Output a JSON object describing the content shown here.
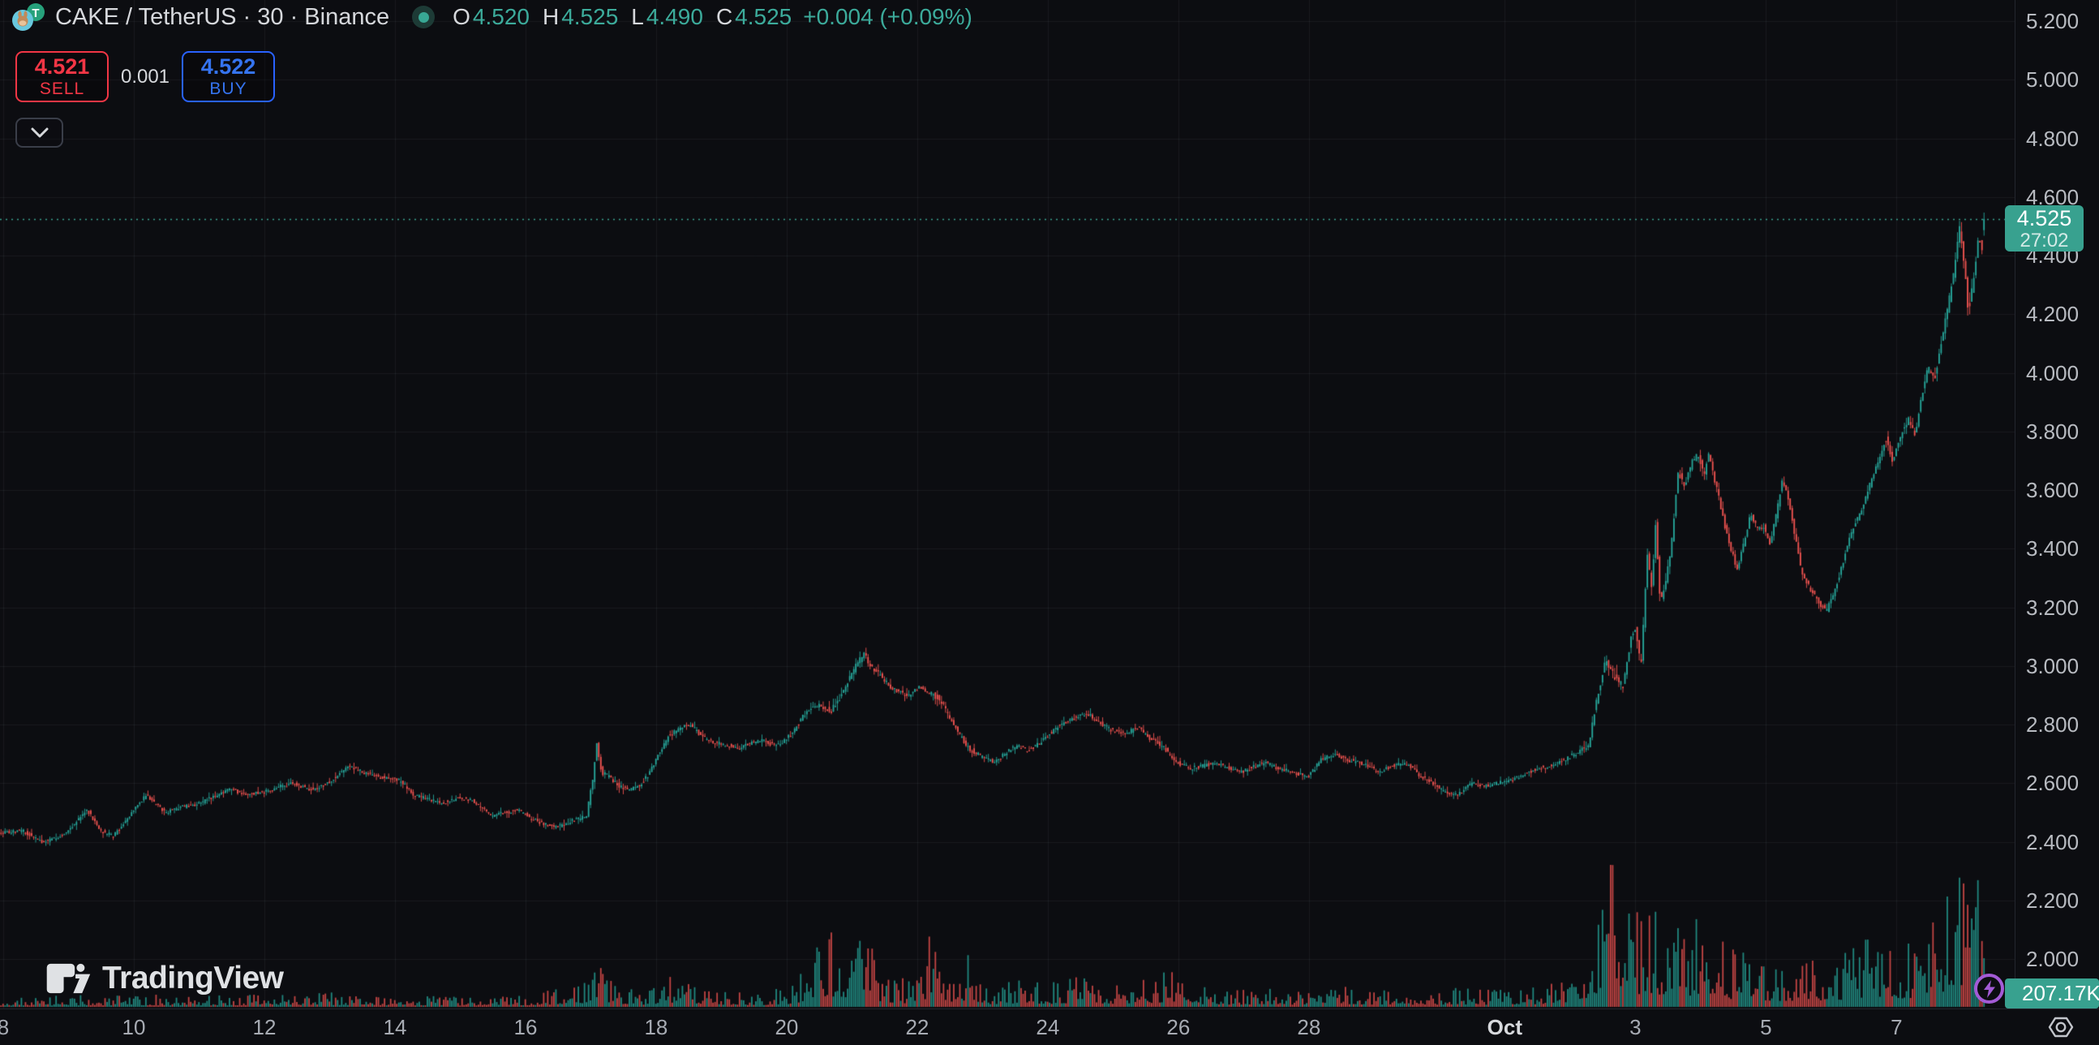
{
  "header": {
    "symbol_title": "CAKE / TetherUS · 30 · Binance",
    "market_status": "open",
    "ohlc": {
      "o_label": "O",
      "o": "4.520",
      "h_label": "H",
      "h": "4.525",
      "l_label": "L",
      "l": "4.490",
      "c_label": "C",
      "c": "4.525",
      "change": "+0.004 (+0.09%)"
    }
  },
  "trade_panel": {
    "sell_price": "4.521",
    "sell_label": "SELL",
    "spread": "0.001",
    "buy_price": "4.522",
    "buy_label": "BUY"
  },
  "price_scale": {
    "ticks": [
      {
        "value": 5.2,
        "label": "5.200"
      },
      {
        "value": 5.0,
        "label": "5.000"
      },
      {
        "value": 4.8,
        "label": "4.800"
      },
      {
        "value": 4.6,
        "label": "4.600"
      },
      {
        "value": 4.4,
        "label": "4.400"
      },
      {
        "value": 4.2,
        "label": "4.200"
      },
      {
        "value": 4.0,
        "label": "4.000"
      },
      {
        "value": 3.8,
        "label": "3.800"
      },
      {
        "value": 3.6,
        "label": "3.600"
      },
      {
        "value": 3.4,
        "label": "3.400"
      },
      {
        "value": 3.2,
        "label": "3.200"
      },
      {
        "value": 3.0,
        "label": "3.000"
      },
      {
        "value": 2.8,
        "label": "2.800"
      },
      {
        "value": 2.6,
        "label": "2.600"
      },
      {
        "value": 2.4,
        "label": "2.400"
      },
      {
        "value": 2.2,
        "label": "2.200"
      },
      {
        "value": 2.0,
        "label": "2.000"
      }
    ],
    "last_price": "4.525",
    "countdown": "27:02"
  },
  "time_scale": {
    "ticks": [
      {
        "label": "8",
        "day": 8
      },
      {
        "label": "10",
        "day": 10
      },
      {
        "label": "12",
        "day": 12
      },
      {
        "label": "14",
        "day": 14
      },
      {
        "label": "16",
        "day": 16
      },
      {
        "label": "18",
        "day": 18
      },
      {
        "label": "20",
        "day": 20
      },
      {
        "label": "22",
        "day": 22
      },
      {
        "label": "24",
        "day": 24
      },
      {
        "label": "26",
        "day": 26
      },
      {
        "label": "28",
        "day": 28
      },
      {
        "label": "Oct",
        "day": 31,
        "major": true
      },
      {
        "label": "3",
        "day": 33
      },
      {
        "label": "5",
        "day": 35
      },
      {
        "label": "7",
        "day": 37
      }
    ]
  },
  "volume_label": "207.17K",
  "watermark": "TradingView",
  "colors": {
    "up": "#26a69a",
    "down": "#ef5350",
    "up_text": "#3cab9b",
    "sell_red": "#f23645",
    "buy_blue": "#2962ff",
    "badge_teal": "#38a18f",
    "boost_purple": "#a35bd6",
    "background": "#0c0d11"
  },
  "chart_data": {
    "type": "candlestick",
    "pair": "CAKE / TetherUS",
    "exchange": "Binance",
    "interval_minutes": 30,
    "ohlc_current": {
      "open": 4.52,
      "high": 4.525,
      "low": 4.49,
      "close": 4.525,
      "change": 0.004,
      "change_pct": 0.09
    },
    "last_price_line": 4.525,
    "y_axis": {
      "price_at_top": 5.272,
      "price_at_bottom": 1.832,
      "tick_step": 0.2,
      "grid": true
    },
    "x_axis": {
      "day_at_left": 7.95,
      "day_at_right": 38.81,
      "last_bar_day": 38.36,
      "month_boundary_day": 31,
      "grid": true
    },
    "price_path": [
      [
        7.95,
        2.43
      ],
      [
        8.3,
        2.44
      ],
      [
        8.6,
        2.4
      ],
      [
        8.9,
        2.42
      ],
      [
        9.1,
        2.46
      ],
      [
        9.3,
        2.51
      ],
      [
        9.5,
        2.44
      ],
      [
        9.7,
        2.42
      ],
      [
        9.9,
        2.47
      ],
      [
        10.05,
        2.52
      ],
      [
        10.2,
        2.56
      ],
      [
        10.35,
        2.53
      ],
      [
        10.5,
        2.5
      ],
      [
        10.75,
        2.52
      ],
      [
        11.0,
        2.53
      ],
      [
        11.3,
        2.56
      ],
      [
        11.5,
        2.58
      ],
      [
        11.75,
        2.56
      ],
      [
        12.0,
        2.57
      ],
      [
        12.25,
        2.59
      ],
      [
        12.45,
        2.6
      ],
      [
        12.7,
        2.58
      ],
      [
        12.9,
        2.59
      ],
      [
        13.1,
        2.62
      ],
      [
        13.3,
        2.66
      ],
      [
        13.5,
        2.64
      ],
      [
        13.8,
        2.62
      ],
      [
        14.1,
        2.61
      ],
      [
        14.3,
        2.56
      ],
      [
        14.5,
        2.55
      ],
      [
        14.7,
        2.53
      ],
      [
        15.0,
        2.55
      ],
      [
        15.2,
        2.54
      ],
      [
        15.5,
        2.49
      ],
      [
        15.7,
        2.5
      ],
      [
        15.9,
        2.51
      ],
      [
        16.1,
        2.48
      ],
      [
        16.3,
        2.46
      ],
      [
        16.5,
        2.45
      ],
      [
        16.7,
        2.47
      ],
      [
        16.95,
        2.49
      ],
      [
        17.05,
        2.62
      ],
      [
        17.1,
        2.74
      ],
      [
        17.18,
        2.64
      ],
      [
        17.3,
        2.62
      ],
      [
        17.45,
        2.59
      ],
      [
        17.6,
        2.58
      ],
      [
        17.75,
        2.59
      ],
      [
        17.9,
        2.63
      ],
      [
        18.05,
        2.7
      ],
      [
        18.2,
        2.76
      ],
      [
        18.4,
        2.79
      ],
      [
        18.55,
        2.8
      ],
      [
        18.7,
        2.76
      ],
      [
        18.9,
        2.74
      ],
      [
        19.1,
        2.73
      ],
      [
        19.3,
        2.72
      ],
      [
        19.5,
        2.74
      ],
      [
        19.65,
        2.75
      ],
      [
        19.8,
        2.73
      ],
      [
        19.95,
        2.74
      ],
      [
        20.1,
        2.77
      ],
      [
        20.3,
        2.84
      ],
      [
        20.5,
        2.87
      ],
      [
        20.7,
        2.85
      ],
      [
        20.85,
        2.9
      ],
      [
        21.0,
        2.97
      ],
      [
        21.1,
        3.01
      ],
      [
        21.2,
        3.04
      ],
      [
        21.3,
        3.0
      ],
      [
        21.45,
        2.97
      ],
      [
        21.6,
        2.93
      ],
      [
        21.75,
        2.91
      ],
      [
        21.9,
        2.9
      ],
      [
        22.05,
        2.93
      ],
      [
        22.2,
        2.91
      ],
      [
        22.35,
        2.89
      ],
      [
        22.5,
        2.83
      ],
      [
        22.65,
        2.77
      ],
      [
        22.8,
        2.72
      ],
      [
        23.0,
        2.69
      ],
      [
        23.2,
        2.67
      ],
      [
        23.4,
        2.71
      ],
      [
        23.55,
        2.73
      ],
      [
        23.7,
        2.71
      ],
      [
        23.85,
        2.73
      ],
      [
        24.0,
        2.76
      ],
      [
        24.2,
        2.8
      ],
      [
        24.4,
        2.82
      ],
      [
        24.6,
        2.84
      ],
      [
        24.8,
        2.81
      ],
      [
        25.0,
        2.78
      ],
      [
        25.2,
        2.77
      ],
      [
        25.4,
        2.79
      ],
      [
        25.6,
        2.75
      ],
      [
        25.8,
        2.72
      ],
      [
        26.0,
        2.67
      ],
      [
        26.2,
        2.65
      ],
      [
        26.4,
        2.66
      ],
      [
        26.6,
        2.67
      ],
      [
        26.8,
        2.65
      ],
      [
        27.0,
        2.64
      ],
      [
        27.2,
        2.66
      ],
      [
        27.35,
        2.67
      ],
      [
        27.55,
        2.65
      ],
      [
        27.75,
        2.64
      ],
      [
        28.0,
        2.62
      ],
      [
        28.2,
        2.68
      ],
      [
        28.4,
        2.7
      ],
      [
        28.6,
        2.68
      ],
      [
        28.8,
        2.67
      ],
      [
        29.1,
        2.64
      ],
      [
        29.3,
        2.66
      ],
      [
        29.5,
        2.67
      ],
      [
        29.7,
        2.63
      ],
      [
        29.9,
        2.6
      ],
      [
        30.1,
        2.57
      ],
      [
        30.3,
        2.56
      ],
      [
        30.5,
        2.6
      ],
      [
        30.7,
        2.59
      ],
      [
        30.9,
        2.6
      ],
      [
        31.1,
        2.61
      ],
      [
        31.3,
        2.63
      ],
      [
        31.5,
        2.65
      ],
      [
        31.7,
        2.66
      ],
      [
        31.9,
        2.68
      ],
      [
        32.1,
        2.7
      ],
      [
        32.3,
        2.73
      ],
      [
        32.42,
        2.88
      ],
      [
        32.55,
        3.02
      ],
      [
        32.7,
        2.96
      ],
      [
        32.83,
        2.93
      ],
      [
        32.95,
        3.1
      ],
      [
        33.02,
        3.13
      ],
      [
        33.1,
        2.99
      ],
      [
        33.2,
        3.39
      ],
      [
        33.27,
        3.25
      ],
      [
        33.32,
        3.51
      ],
      [
        33.4,
        3.21
      ],
      [
        33.48,
        3.28
      ],
      [
        33.57,
        3.42
      ],
      [
        33.67,
        3.66
      ],
      [
        33.77,
        3.62
      ],
      [
        33.89,
        3.7
      ],
      [
        33.98,
        3.72
      ],
      [
        34.07,
        3.65
      ],
      [
        34.13,
        3.73
      ],
      [
        34.19,
        3.67
      ],
      [
        34.29,
        3.58
      ],
      [
        34.41,
        3.45
      ],
      [
        34.57,
        3.33
      ],
      [
        34.68,
        3.42
      ],
      [
        34.78,
        3.52
      ],
      [
        34.88,
        3.47
      ],
      [
        34.98,
        3.48
      ],
      [
        35.07,
        3.41
      ],
      [
        35.16,
        3.5
      ],
      [
        35.26,
        3.63
      ],
      [
        35.35,
        3.58
      ],
      [
        35.43,
        3.48
      ],
      [
        35.57,
        3.31
      ],
      [
        35.7,
        3.26
      ],
      [
        35.85,
        3.21
      ],
      [
        35.95,
        3.19
      ],
      [
        36.1,
        3.28
      ],
      [
        36.3,
        3.44
      ],
      [
        36.5,
        3.55
      ],
      [
        36.7,
        3.68
      ],
      [
        36.85,
        3.78
      ],
      [
        36.95,
        3.7
      ],
      [
        37.1,
        3.8
      ],
      [
        37.2,
        3.84
      ],
      [
        37.3,
        3.79
      ],
      [
        37.4,
        3.92
      ],
      [
        37.5,
        4.02
      ],
      [
        37.6,
        3.98
      ],
      [
        37.7,
        4.1
      ],
      [
        37.8,
        4.22
      ],
      [
        37.9,
        4.35
      ],
      [
        37.98,
        4.49
      ],
      [
        38.05,
        4.38
      ],
      [
        38.12,
        4.2
      ],
      [
        38.2,
        4.33
      ],
      [
        38.28,
        4.47
      ],
      [
        38.33,
        4.41
      ],
      [
        38.36,
        4.525
      ]
    ],
    "volume_profile": [
      [
        7.95,
        10
      ],
      [
        9,
        12
      ],
      [
        10,
        13
      ],
      [
        11,
        12
      ],
      [
        12,
        13
      ],
      [
        13,
        15
      ],
      [
        14,
        12
      ],
      [
        15,
        11
      ],
      [
        16,
        13
      ],
      [
        16.9,
        25
      ],
      [
        17.1,
        80
      ],
      [
        17.3,
        28
      ],
      [
        17.8,
        16
      ],
      [
        18.2,
        35
      ],
      [
        18.6,
        28
      ],
      [
        19,
        16
      ],
      [
        19.6,
        14
      ],
      [
        20.1,
        25
      ],
      [
        20.35,
        50
      ],
      [
        20.65,
        90
      ],
      [
        20.9,
        60
      ],
      [
        21.05,
        70
      ],
      [
        21.2,
        75
      ],
      [
        21.4,
        45
      ],
      [
        21.7,
        30
      ],
      [
        22,
        28
      ],
      [
        22.3,
        110
      ],
      [
        22.45,
        40
      ],
      [
        22.8,
        55
      ],
      [
        23.1,
        22
      ],
      [
        23.5,
        28
      ],
      [
        24,
        24
      ],
      [
        24.5,
        33
      ],
      [
        25,
        24
      ],
      [
        25.5,
        30
      ],
      [
        25.9,
        40
      ],
      [
        26.3,
        22
      ],
      [
        26.8,
        18
      ],
      [
        27.3,
        22
      ],
      [
        27.8,
        18
      ],
      [
        28.2,
        26
      ],
      [
        28.7,
        20
      ],
      [
        29.2,
        18
      ],
      [
        29.7,
        16
      ],
      [
        30.2,
        20
      ],
      [
        30.7,
        18
      ],
      [
        31.2,
        18
      ],
      [
        31.6,
        22
      ],
      [
        31.95,
        32
      ],
      [
        32.2,
        55
      ],
      [
        32.45,
        130
      ],
      [
        32.6,
        160
      ],
      [
        32.8,
        120
      ],
      [
        33,
        100
      ],
      [
        33.2,
        115
      ],
      [
        33.4,
        95
      ],
      [
        33.6,
        85
      ],
      [
        33.9,
        95
      ],
      [
        34.1,
        80
      ],
      [
        34.4,
        65
      ],
      [
        34.7,
        58
      ],
      [
        35,
        52
      ],
      [
        35.3,
        48
      ],
      [
        35.6,
        50
      ],
      [
        35.9,
        55
      ],
      [
        36.2,
        58
      ],
      [
        36.5,
        70
      ],
      [
        36.8,
        85
      ],
      [
        37,
        68
      ],
      [
        37.2,
        72
      ],
      [
        37.5,
        88
      ],
      [
        37.7,
        105
      ],
      [
        37.9,
        135
      ],
      [
        38.05,
        155
      ],
      [
        38.15,
        170
      ],
      [
        38.25,
        125
      ],
      [
        38.36,
        65
      ]
    ],
    "current_bar_volume_label": "207.17K"
  }
}
